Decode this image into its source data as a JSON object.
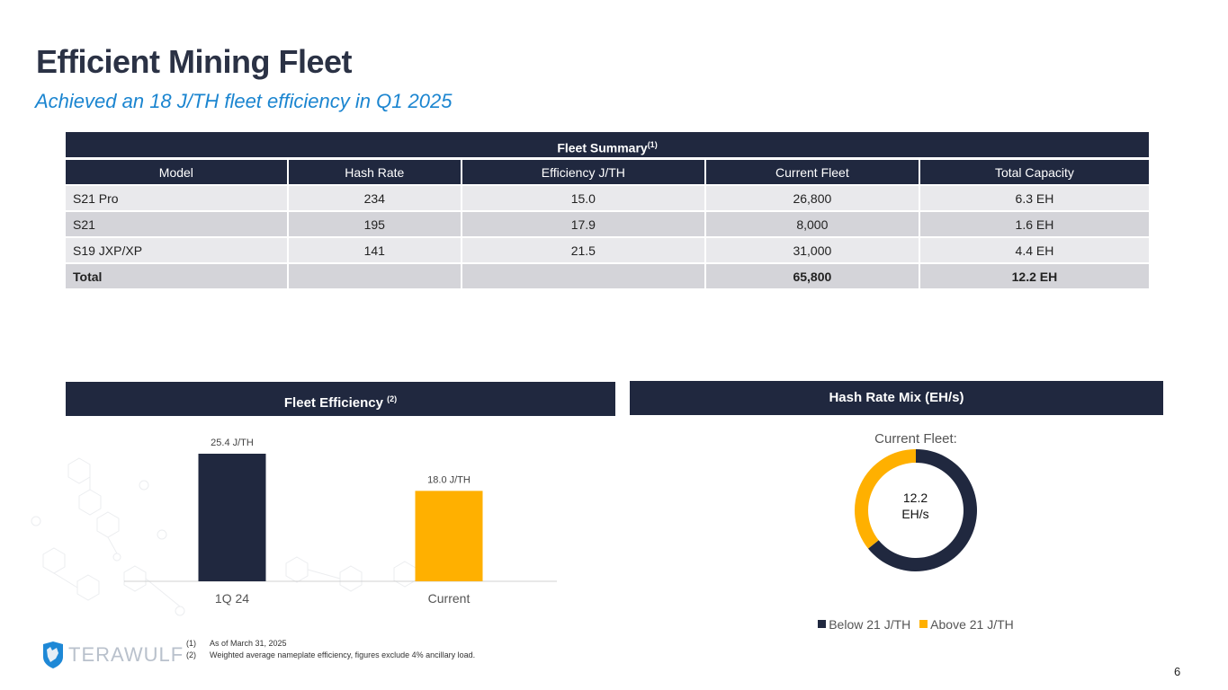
{
  "header": {
    "title": "Efficient Mining Fleet",
    "subtitle": "Achieved an 18 J/TH fleet efficiency in Q1 2025"
  },
  "fleet_summary": {
    "title": "Fleet Summary",
    "title_note": "(1)",
    "columns": [
      "Model",
      "Hash Rate",
      "Efficiency J/TH",
      "Current Fleet",
      "Total Capacity"
    ],
    "rows": [
      [
        "S21 Pro",
        "234",
        "15.0",
        "26,800",
        "6.3 EH"
      ],
      [
        "S21",
        "195",
        "17.9",
        "8,000",
        "1.6 EH"
      ],
      [
        "S19 JXP/XP",
        "141",
        "21.5",
        "31,000",
        "4.4 EH"
      ]
    ],
    "total": [
      "Total",
      "",
      "",
      "65,800",
      "12.2 EH"
    ]
  },
  "fleet_efficiency": {
    "title": "Fleet Efficiency",
    "title_note": "(2)"
  },
  "hash_rate_mix": {
    "title": "Hash Rate Mix (EH/s)",
    "chart_title": "Current Fleet:",
    "center_value": "12.2",
    "center_unit": "EH/s"
  },
  "chart_data": [
    {
      "type": "bar",
      "title": "Fleet Efficiency (2)",
      "categories": [
        "1Q 24",
        "Current"
      ],
      "values": [
        25.4,
        18.0
      ],
      "data_labels": [
        "25.4 J/TH",
        "18.0  J/TH"
      ],
      "colors": [
        "#20283f",
        "#ffb000"
      ],
      "xlabel": "",
      "ylabel": "J/TH",
      "ylim": [
        0,
        28
      ],
      "grid": false
    },
    {
      "type": "pie",
      "title": "Current Fleet:",
      "donut": true,
      "labels": [
        "Below 21 J/TH",
        "Above 21 J/TH"
      ],
      "values": [
        7.9,
        4.4
      ],
      "colors": [
        "#20283f",
        "#ffb000"
      ],
      "center_label": "12.2 EH/s",
      "legend": "bottom"
    }
  ],
  "footnotes": [
    {
      "num": "(1)",
      "text": "As of March 31, 2025"
    },
    {
      "num": "(2)",
      "text": "Weighted average nameplate efficiency, figures exclude 4% ancillary load."
    }
  ],
  "logo": {
    "text": "TERAWULF"
  },
  "page_number": "6",
  "colors": {
    "navy": "#20283f",
    "accent_yellow": "#ffb000",
    "subtitle_blue": "#1b85d0"
  }
}
